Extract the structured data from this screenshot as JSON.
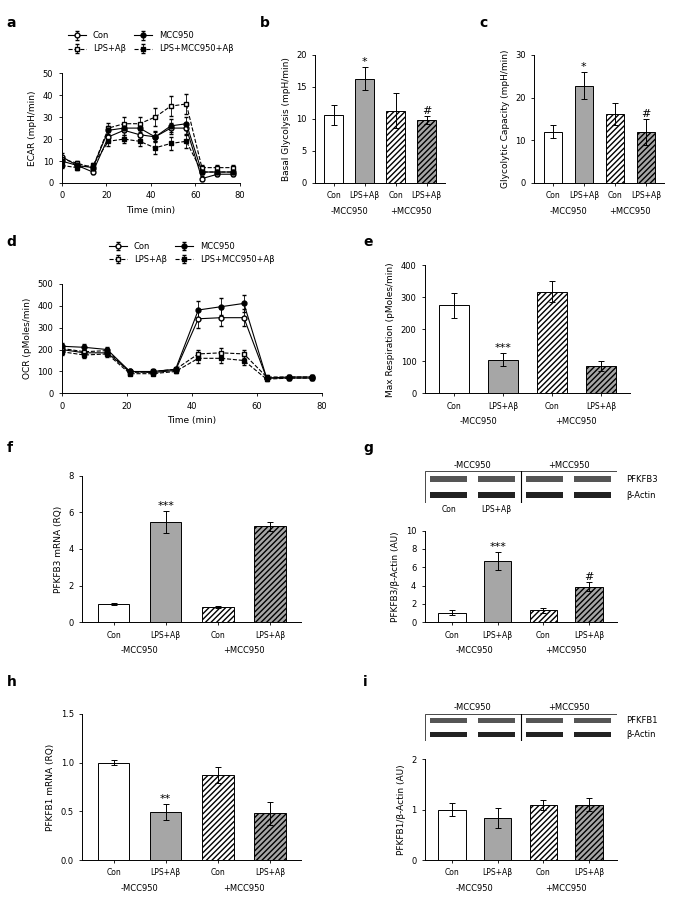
{
  "chart_data": [
    {
      "type": "line",
      "panel": "a",
      "xlabel": "Time (min)",
      "ylabel": "ECAR (mpH/min)",
      "xlim": [
        0,
        80
      ],
      "xticks": [
        0,
        20,
        40,
        60,
        80
      ],
      "ylim": [
        0,
        50
      ],
      "yticks": [
        0,
        10,
        20,
        30,
        40,
        50
      ],
      "legend": "upper center",
      "x": [
        0,
        7,
        14,
        21,
        28,
        35,
        42,
        49,
        56,
        63,
        70,
        77
      ],
      "series": [
        {
          "name": "Con",
          "color": "#000000",
          "marker": "circle_open",
          "line_style": "solid",
          "values": [
            12,
            8,
            5,
            21,
            24,
            22,
            21,
            25,
            25,
            2,
            4,
            4
          ],
          "errors": [
            1.5,
            1,
            1,
            2,
            2,
            2,
            2,
            2.5,
            2.5,
            1,
            1,
            1
          ]
        },
        {
          "name": "LPS+Aβ",
          "color": "#000000",
          "marker": "square_open",
          "line_style": "dashed",
          "values": [
            11,
            9,
            7,
            25,
            27,
            27,
            30,
            35,
            36,
            7,
            7,
            7
          ],
          "errors": [
            1.5,
            1,
            1,
            2.5,
            3,
            3,
            4,
            4.5,
            4.5,
            1,
            1,
            1
          ]
        },
        {
          "name": "MCC950",
          "color": "#000000",
          "marker": "circle",
          "line_style": "solid",
          "values": [
            10,
            8,
            7,
            24,
            25,
            25,
            21,
            26,
            27,
            5,
            5,
            5
          ],
          "errors": [
            1.5,
            1,
            1,
            2,
            2,
            2,
            2.5,
            3,
            3,
            1,
            1,
            1
          ]
        },
        {
          "name": "LPS+MCC950+Aβ",
          "color": "#000000",
          "marker": "square",
          "line_style": "dashed",
          "values": [
            8,
            7,
            8,
            19,
            20,
            19,
            16,
            18,
            19,
            5,
            5,
            5
          ],
          "errors": [
            1,
            1,
            1,
            2,
            2,
            2,
            3,
            3,
            3,
            1,
            1,
            1
          ]
        }
      ]
    },
    {
      "type": "bar",
      "panel": "b",
      "ylabel": "Basal Glycolysis (mpH/min)",
      "categories": [
        "Con",
        "LPS+Aβ",
        "Con",
        "LPS+Aβ"
      ],
      "groups": [
        "-MCC950",
        "+MCC950"
      ],
      "values": [
        10.6,
        16.3,
        11.3,
        9.8
      ],
      "errors": [
        1.5,
        1.8,
        2.7,
        0.6
      ],
      "marks": [
        null,
        "*",
        null,
        "#"
      ],
      "colors": [
        "#ffffff",
        "#a6a6a6",
        "#ffffff",
        "#a6a6a6"
      ],
      "ylim": [
        0,
        20
      ],
      "yticks": [
        0,
        5,
        10,
        15,
        20
      ]
    },
    {
      "type": "bar",
      "panel": "c",
      "ylabel": "Glycolytic Capacity (mpH/min)",
      "categories": [
        "Con",
        "LPS+Aβ",
        "Con",
        "LPS+Aβ"
      ],
      "groups": [
        "-MCC950",
        "+MCC950"
      ],
      "values": [
        12,
        22.8,
        16.2,
        12
      ],
      "errors": [
        1.5,
        3.2,
        2.5,
        3
      ],
      "marks": [
        null,
        "*",
        null,
        "#"
      ],
      "colors": [
        "#ffffff",
        "#a6a6a6",
        "#ffffff",
        "#a6a6a6"
      ],
      "ylim": [
        0,
        30
      ],
      "yticks": [
        0,
        10,
        20,
        30
      ]
    },
    {
      "type": "line",
      "panel": "d",
      "xlabel": "Time (min)",
      "ylabel": "OCR (pMoles/min)",
      "xlim": [
        0,
        80
      ],
      "xticks": [
        0,
        20,
        40,
        60,
        80
      ],
      "ylim": [
        0,
        500
      ],
      "yticks": [
        0,
        100,
        200,
        300,
        400,
        500
      ],
      "legend": "upper center",
      "x": [
        0,
        7,
        14,
        21,
        28,
        35,
        42,
        49,
        56,
        63,
        70,
        77
      ],
      "series": [
        {
          "name": "Con",
          "color": "#000000",
          "marker": "circle_open",
          "line_style": "solid",
          "values": [
            200,
            185,
            185,
            100,
            95,
            105,
            340,
            345,
            345,
            70,
            75,
            75
          ],
          "errors": [
            15,
            15,
            12,
            8,
            8,
            8,
            40,
            40,
            40,
            8,
            8,
            8
          ]
        },
        {
          "name": "LPS+Aβ",
          "color": "#000000",
          "marker": "square_open",
          "line_style": "dashed",
          "values": [
            205,
            190,
            195,
            95,
            100,
            110,
            180,
            185,
            180,
            75,
            75,
            75
          ],
          "errors": [
            15,
            15,
            12,
            8,
            8,
            8,
            20,
            20,
            20,
            8,
            8,
            8
          ]
        },
        {
          "name": "MCC950",
          "color": "#000000",
          "marker": "circle",
          "line_style": "solid",
          "values": [
            215,
            210,
            200,
            100,
            100,
            110,
            380,
            395,
            410,
            70,
            70,
            70
          ],
          "errors": [
            15,
            15,
            12,
            8,
            8,
            8,
            40,
            40,
            40,
            8,
            8,
            8
          ]
        },
        {
          "name": "LPS+MCC950+Aβ",
          "color": "#000000",
          "marker": "square",
          "line_style": "dashed",
          "values": [
            190,
            175,
            180,
            90,
            90,
            100,
            160,
            160,
            150,
            65,
            70,
            70
          ],
          "errors": [
            15,
            15,
            12,
            8,
            8,
            8,
            20,
            20,
            20,
            8,
            8,
            8
          ]
        }
      ]
    },
    {
      "type": "bar",
      "panel": "e",
      "ylabel": "Max Respiration (pMoles/min)",
      "categories": [
        "Con",
        "LPS+Aβ",
        "Con",
        "LPS+Aβ"
      ],
      "groups": [
        "-MCC950",
        "+MCC950"
      ],
      "values": [
        275,
        105,
        318,
        85
      ],
      "errors": [
        38,
        20,
        32,
        15
      ],
      "marks": [
        null,
        "***",
        null,
        null
      ],
      "colors": [
        "#ffffff",
        "#a6a6a6",
        "#ffffff",
        "#a6a6a6"
      ],
      "ylim": [
        0,
        400
      ],
      "yticks": [
        0,
        100,
        200,
        300,
        400
      ]
    },
    {
      "type": "bar",
      "panel": "f",
      "ylabel": "PFKFB3 mRNA (RQ)",
      "categories": [
        "Con",
        "LPS+Aβ",
        "Con",
        "LPS+Aβ"
      ],
      "groups": [
        "-MCC950",
        "+MCC950"
      ],
      "values": [
        1.0,
        5.5,
        0.85,
        5.25
      ],
      "errors": [
        0.05,
        0.6,
        0.05,
        0.25
      ],
      "marks": [
        null,
        "***",
        null,
        null
      ],
      "colors": [
        "#ffffff",
        "#a6a6a6",
        "#ffffff",
        "#a6a6a6"
      ],
      "ylim": [
        0,
        8
      ],
      "yticks": [
        0,
        2,
        4,
        6,
        8
      ]
    },
    {
      "type": "bar",
      "panel": "g",
      "ylabel": "PFKFB3/β-Actin (AU)",
      "categories": [
        "Con",
        "LPS+Aβ",
        "Con",
        "LPS+Aβ"
      ],
      "groups": [
        "-MCC950",
        "+MCC950"
      ],
      "values": [
        1.05,
        6.7,
        1.3,
        3.9
      ],
      "errors": [
        0.25,
        1.0,
        0.3,
        0.45
      ],
      "marks": [
        null,
        "***",
        null,
        "#"
      ],
      "colors": [
        "#ffffff",
        "#a6a6a6",
        "#ffffff",
        "#a6a6a6"
      ],
      "ylim": [
        0,
        10
      ],
      "yticks": [
        0,
        2,
        4,
        6,
        8,
        10
      ],
      "blot": {
        "groups": [
          "-MCC950",
          "+MCC950"
        ],
        "lanes": [
          "Con",
          "LPS+Aβ"
        ],
        "bands": [
          "PFKFB3",
          "β-Actin"
        ]
      }
    },
    {
      "type": "bar",
      "panel": "h",
      "ylabel": "PFKFB1 mRNA (RQ)",
      "categories": [
        "Con",
        "LPS+Aβ",
        "Con",
        "LPS+Aβ"
      ],
      "groups": [
        "-MCC950",
        "+MCC950"
      ],
      "values": [
        1.0,
        0.49,
        0.87,
        0.48
      ],
      "errors": [
        0.03,
        0.08,
        0.08,
        0.12
      ],
      "marks": [
        null,
        "**",
        null,
        null
      ],
      "colors": [
        "#ffffff",
        "#a6a6a6",
        "#ffffff",
        "#a6a6a6"
      ],
      "ylim": [
        0,
        1.5
      ],
      "yticks": [
        {
          "value": 0,
          "label": "0.0"
        },
        0.5,
        {
          "value": 1,
          "label": "1.0"
        },
        1.5
      ]
    },
    {
      "type": "bar",
      "panel": "i",
      "ylabel": "PFKFB1/β-Actin (AU)",
      "categories": [
        "Con",
        "LPS+Aβ",
        "Con",
        "LPS+Aβ"
      ],
      "groups": [
        "-MCC950",
        "+MCC950"
      ],
      "values": [
        1.0,
        0.83,
        1.1,
        1.1
      ],
      "errors": [
        0.13,
        0.2,
        0.1,
        0.13
      ],
      "marks": [
        null,
        null,
        null,
        null
      ],
      "colors": [
        "#ffffff",
        "#a6a6a6",
        "#ffffff",
        "#a6a6a6"
      ],
      "ylim": [
        0,
        2
      ],
      "yticks": [
        0,
        1,
        2
      ],
      "blot": {
        "groups": [
          "-MCC950",
          "+MCC950"
        ],
        "bands": [
          "PFKFB1",
          "β-Actin"
        ]
      }
    }
  ]
}
